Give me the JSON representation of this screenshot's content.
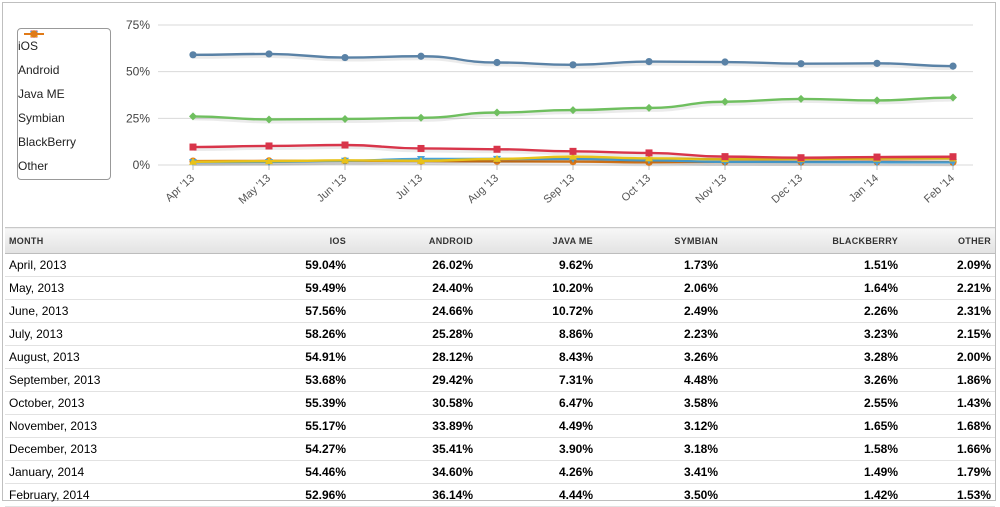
{
  "chart_data": {
    "type": "line",
    "categories": [
      "Apr '13",
      "May '13",
      "Jun '13",
      "Jul '13",
      "Aug '13",
      "Sep '13",
      "Oct '13",
      "Nov '13",
      "Dec '13",
      "Jan '14",
      "Feb '14"
    ],
    "y_ticks": [
      "75%",
      "50%",
      "25%",
      "0%"
    ],
    "ylim": [
      0,
      75
    ],
    "grid": true,
    "legend_position": "top-left",
    "series": [
      {
        "name": "iOS",
        "color": "#5a82a6",
        "marker": "circle",
        "values": [
          59.04,
          59.49,
          57.56,
          58.26,
          54.91,
          53.68,
          55.39,
          55.17,
          54.27,
          54.46,
          52.96
        ]
      },
      {
        "name": "Android",
        "color": "#6fbf5f",
        "marker": "diamond",
        "values": [
          26.02,
          24.4,
          24.66,
          25.28,
          28.12,
          29.42,
          30.58,
          33.89,
          35.41,
          34.6,
          36.14
        ]
      },
      {
        "name": "Java ME",
        "color": "#d8354a",
        "marker": "square",
        "values": [
          9.62,
          10.2,
          10.72,
          8.86,
          8.43,
          7.31,
          6.47,
          4.49,
          3.9,
          4.26,
          4.44
        ]
      },
      {
        "name": "Symbian",
        "color": "#e8c21a",
        "marker": "triangle-up",
        "values": [
          1.73,
          2.06,
          2.49,
          2.23,
          3.26,
          4.48,
          3.58,
          3.12,
          3.18,
          3.41,
          3.5
        ]
      },
      {
        "name": "BlackBerry",
        "color": "#4aa3d8",
        "marker": "triangle-down",
        "values": [
          1.51,
          1.64,
          2.26,
          3.23,
          3.28,
          3.26,
          2.55,
          1.65,
          1.58,
          1.49,
          1.42
        ]
      },
      {
        "name": "Other",
        "color": "#e07a18",
        "marker": "circle",
        "values": [
          2.09,
          2.21,
          2.31,
          2.15,
          2.0,
          1.86,
          1.43,
          1.68,
          1.66,
          1.79,
          1.53
        ]
      }
    ]
  },
  "table": {
    "headers": [
      "MONTH",
      "IOS",
      "ANDROID",
      "JAVA ME",
      "SYMBIAN",
      "BLACKBERRY",
      "OTHER"
    ],
    "rows": [
      [
        "April, 2013",
        "59.04%",
        "26.02%",
        "9.62%",
        "1.73%",
        "1.51%",
        "2.09%"
      ],
      [
        "May, 2013",
        "59.49%",
        "24.40%",
        "10.20%",
        "2.06%",
        "1.64%",
        "2.21%"
      ],
      [
        "June, 2013",
        "57.56%",
        "24.66%",
        "10.72%",
        "2.49%",
        "2.26%",
        "2.31%"
      ],
      [
        "July, 2013",
        "58.26%",
        "25.28%",
        "8.86%",
        "2.23%",
        "3.23%",
        "2.15%"
      ],
      [
        "August, 2013",
        "54.91%",
        "28.12%",
        "8.43%",
        "3.26%",
        "3.28%",
        "2.00%"
      ],
      [
        "September, 2013",
        "53.68%",
        "29.42%",
        "7.31%",
        "4.48%",
        "3.26%",
        "1.86%"
      ],
      [
        "October, 2013",
        "55.39%",
        "30.58%",
        "6.47%",
        "3.58%",
        "2.55%",
        "1.43%"
      ],
      [
        "November, 2013",
        "55.17%",
        "33.89%",
        "4.49%",
        "3.12%",
        "1.65%",
        "1.68%"
      ],
      [
        "December, 2013",
        "54.27%",
        "35.41%",
        "3.90%",
        "3.18%",
        "1.58%",
        "1.66%"
      ],
      [
        "January, 2014",
        "54.46%",
        "34.60%",
        "4.26%",
        "3.41%",
        "1.49%",
        "1.79%"
      ],
      [
        "February, 2014",
        "52.96%",
        "36.14%",
        "4.44%",
        "3.50%",
        "1.42%",
        "1.53%"
      ]
    ]
  }
}
